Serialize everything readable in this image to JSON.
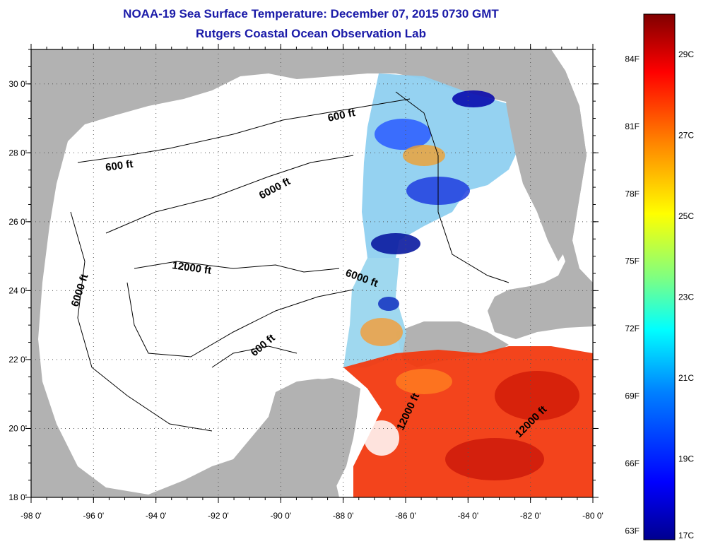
{
  "header": {
    "title": "NOAA-19 Sea Surface Temperature:  December 07, 2015 0730 GMT",
    "subtitle": "Rutgers Coastal Ocean Observation Lab"
  },
  "axes": {
    "lon_ticks": [
      "-98 0'",
      "-96 0'",
      "-94 0'",
      "-92 0'",
      "-90 0'",
      "-88 0'",
      "-86 0'",
      "-84 0'",
      "-82 0'",
      "-80 0'"
    ],
    "lat_ticks": [
      "30 0'",
      "28 0'",
      "26 0'",
      "24 0'",
      "22 0'",
      "20 0'",
      "18 0'"
    ],
    "lon_range": [
      -98,
      -80
    ],
    "lat_range": [
      18,
      31
    ]
  },
  "contours": {
    "labels": [
      "600 ft",
      "600 ft",
      "6000 ft",
      "12000 ft",
      "6000 ft",
      "6000 ft",
      "600 ft",
      "12000 ft",
      "12000 ft"
    ]
  },
  "colorbar": {
    "f_labels": [
      "84F",
      "81F",
      "78F",
      "75F",
      "72F",
      "69F",
      "66F",
      "63F"
    ],
    "c_labels": [
      "29C",
      "27C",
      "25C",
      "23C",
      "21C",
      "19C",
      "17C"
    ],
    "range_c": [
      17,
      30
    ],
    "colors": [
      "#00008f",
      "#0000ff",
      "#0080ff",
      "#00ffff",
      "#80ff80",
      "#ffff00",
      "#ff8000",
      "#ff0000",
      "#800000"
    ]
  },
  "colors": {
    "land": "#b2b2b2",
    "water": "#ffffff",
    "title": "#1a1aa8"
  }
}
